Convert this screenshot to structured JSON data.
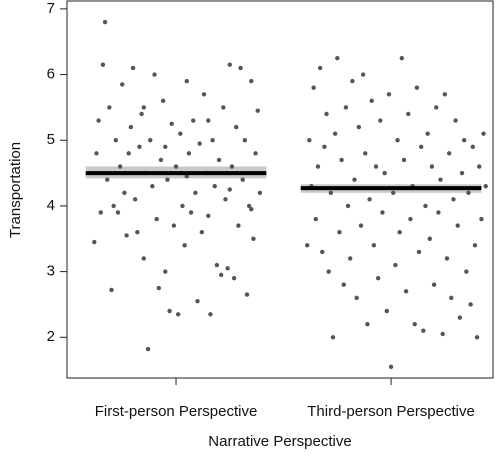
{
  "chart_data": {
    "type": "scatter",
    "xlabel": "Narrative Perspective",
    "ylabel": "Transportation",
    "xlim": [
      0.493,
      2.474
    ],
    "ylim": [
      1.38,
      7.12
    ],
    "xticks": [
      {
        "value": 1,
        "label": "First-person Perspective"
      },
      {
        "value": 2,
        "label": "Third-person Perspective"
      }
    ],
    "yticks": [
      2,
      3,
      4,
      5,
      6,
      7
    ],
    "point_color": "#555555",
    "mean_color": "#000000",
    "ci_color": "#c8c8c8",
    "means": [
      {
        "x": 1,
        "value": 4.5,
        "ci": [
          4.42,
          4.6
        ]
      },
      {
        "x": 2,
        "value": 4.27,
        "ci": [
          4.2,
          4.33
        ]
      }
    ],
    "series": [
      {
        "x": [
          0.62,
          0.64,
          0.66,
          0.67,
          0.68,
          0.69,
          0.7,
          0.71,
          0.72,
          0.73,
          0.74,
          0.75,
          0.76,
          0.77,
          0.78,
          0.79,
          0.8,
          0.81,
          0.82,
          0.83,
          0.84,
          0.85,
          0.86,
          0.87,
          0.88,
          0.89,
          0.9,
          0.91,
          0.92,
          0.93,
          0.94,
          0.95,
          0.96,
          0.97,
          0.98,
          0.99,
          1.0,
          1.01,
          1.02,
          1.03,
          1.04,
          1.05,
          1.06,
          1.07,
          1.08,
          1.09,
          1.1,
          1.11,
          1.12,
          1.13,
          1.14,
          1.15,
          1.16,
          1.17,
          1.18,
          1.19,
          1.2,
          1.21,
          1.22,
          1.23,
          1.24,
          1.25,
          1.26,
          1.27,
          1.28,
          1.29,
          1.3,
          1.31,
          1.32,
          1.33,
          1.34,
          1.35,
          1.36,
          1.37,
          1.38,
          1.39,
          0.63,
          0.65,
          0.85,
          0.95,
          1.05,
          1.15,
          1.25,
          1.35
        ],
        "values": [
          3.45,
          5.3,
          6.15,
          6.8,
          4.4,
          5.5,
          2.72,
          4.0,
          5.0,
          3.9,
          4.6,
          5.85,
          4.2,
          3.55,
          4.8,
          5.2,
          6.1,
          4.1,
          3.6,
          4.9,
          5.4,
          3.2,
          4.5,
          1.82,
          5.0,
          4.3,
          6.0,
          3.8,
          2.75,
          4.7,
          5.6,
          3.0,
          4.4,
          2.4,
          5.25,
          3.7,
          4.6,
          2.35,
          5.1,
          4.0,
          3.4,
          5.9,
          4.8,
          3.9,
          5.3,
          4.2,
          2.55,
          4.95,
          3.6,
          5.7,
          4.5,
          3.85,
          2.35,
          5.0,
          4.3,
          3.1,
          4.7,
          2.95,
          5.5,
          4.1,
          3.05,
          6.15,
          4.6,
          2.9,
          5.2,
          3.7,
          6.1,
          4.4,
          5.0,
          2.65,
          4.0,
          5.9,
          3.5,
          4.8,
          5.45,
          4.2,
          4.8,
          3.9,
          5.5,
          4.9,
          4.45,
          5.3,
          4.25,
          3.95
        ]
      },
      {
        "x": [
          1.61,
          1.62,
          1.63,
          1.64,
          1.65,
          1.66,
          1.67,
          1.68,
          1.69,
          1.7,
          1.71,
          1.72,
          1.73,
          1.74,
          1.75,
          1.76,
          1.77,
          1.78,
          1.79,
          1.8,
          1.81,
          1.82,
          1.83,
          1.84,
          1.85,
          1.86,
          1.87,
          1.88,
          1.89,
          1.9,
          1.91,
          1.92,
          1.93,
          1.94,
          1.95,
          1.96,
          1.97,
          1.98,
          1.99,
          2.0,
          2.01,
          2.02,
          2.03,
          2.04,
          2.05,
          2.06,
          2.07,
          2.08,
          2.09,
          2.1,
          2.11,
          2.12,
          2.13,
          2.14,
          2.15,
          2.16,
          2.17,
          2.18,
          2.19,
          2.2,
          2.21,
          2.22,
          2.23,
          2.24,
          2.25,
          2.26,
          2.27,
          2.28,
          2.29,
          2.3,
          2.31,
          2.32,
          2.33,
          2.34,
          2.35,
          2.36,
          2.37,
          2.38,
          2.39,
          2.4,
          2.41,
          2.42,
          2.43,
          2.44
        ],
        "values": [
          3.4,
          5.0,
          4.3,
          5.8,
          3.8,
          4.6,
          6.1,
          3.3,
          4.9,
          5.4,
          3.0,
          4.2,
          2.0,
          5.1,
          6.25,
          3.6,
          4.7,
          2.8,
          5.5,
          4.0,
          3.2,
          5.9,
          4.4,
          2.6,
          5.2,
          3.7,
          6.0,
          4.8,
          2.2,
          4.1,
          5.6,
          3.4,
          4.6,
          2.9,
          5.3,
          3.9,
          4.5,
          2.4,
          5.7,
          1.55,
          4.2,
          3.1,
          5.0,
          3.6,
          6.25,
          4.7,
          2.7,
          5.4,
          3.8,
          4.3,
          2.2,
          5.8,
          3.3,
          4.9,
          2.1,
          4.0,
          5.1,
          3.5,
          4.6,
          2.8,
          5.5,
          3.9,
          4.4,
          2.05,
          5.7,
          3.2,
          4.8,
          2.6,
          4.1,
          5.3,
          3.7,
          2.3,
          4.5,
          5.0,
          3.0,
          4.2,
          2.5,
          4.9,
          3.4,
          2.0,
          4.6,
          3.8,
          5.1,
          4.3
        ]
      }
    ]
  }
}
